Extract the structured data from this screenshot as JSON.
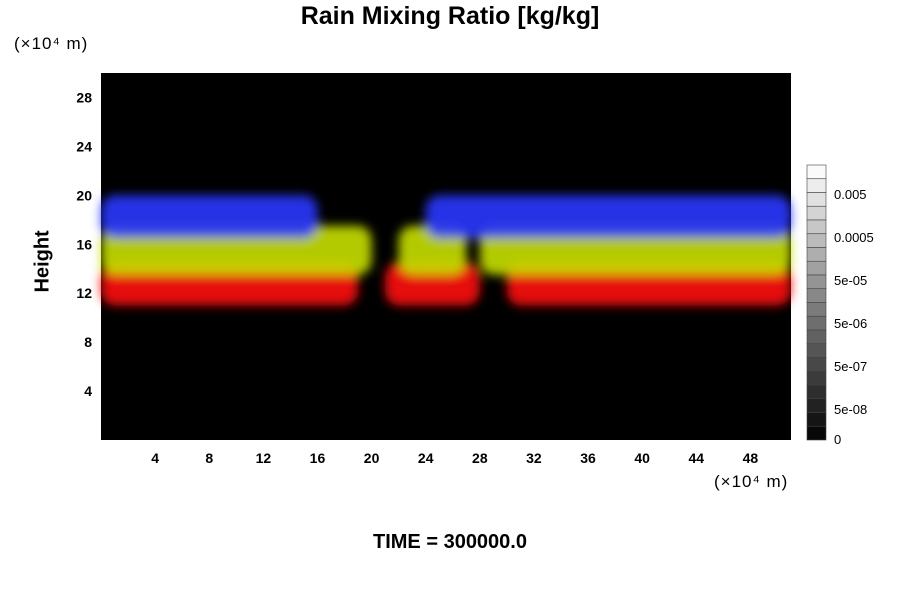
{
  "chart_data": {
    "type": "heatmap",
    "title": "Rain Mixing Ratio [kg/kg]",
    "xlabel": "",
    "ylabel": "Height",
    "x_unit": "(×10⁴ m)",
    "y_unit": "(×10⁴ m)",
    "xlim": [
      0,
      51
    ],
    "ylim": [
      0,
      30
    ],
    "x_ticks": [
      4,
      8,
      12,
      16,
      20,
      24,
      28,
      32,
      36,
      40,
      44,
      48
    ],
    "y_ticks": [
      4,
      8,
      12,
      16,
      20,
      24,
      28
    ],
    "colorbar": {
      "ticks": [
        "0.005",
        "0.0005",
        "5e-05",
        "5e-06",
        "5e-07",
        "5e-08",
        "0"
      ],
      "levels": 20
    },
    "bands": [
      {
        "color": "#ff1010",
        "y_range": [
          11,
          14.5
        ],
        "x_segments": [
          [
            0,
            19
          ],
          [
            21,
            28
          ],
          [
            30,
            51
          ]
        ]
      },
      {
        "color": "#c8e000",
        "y_range": [
          13.5,
          17.5
        ],
        "x_segments": [
          [
            0,
            20
          ],
          [
            22,
            27
          ],
          [
            28,
            51
          ]
        ]
      },
      {
        "color": "#2a36ff",
        "y_range": [
          16.5,
          20
        ],
        "x_segments": [
          [
            0,
            16
          ],
          [
            24,
            51
          ]
        ]
      }
    ],
    "background": "#000000"
  },
  "footer": {
    "time_label": "TIME = 300000.0"
  }
}
